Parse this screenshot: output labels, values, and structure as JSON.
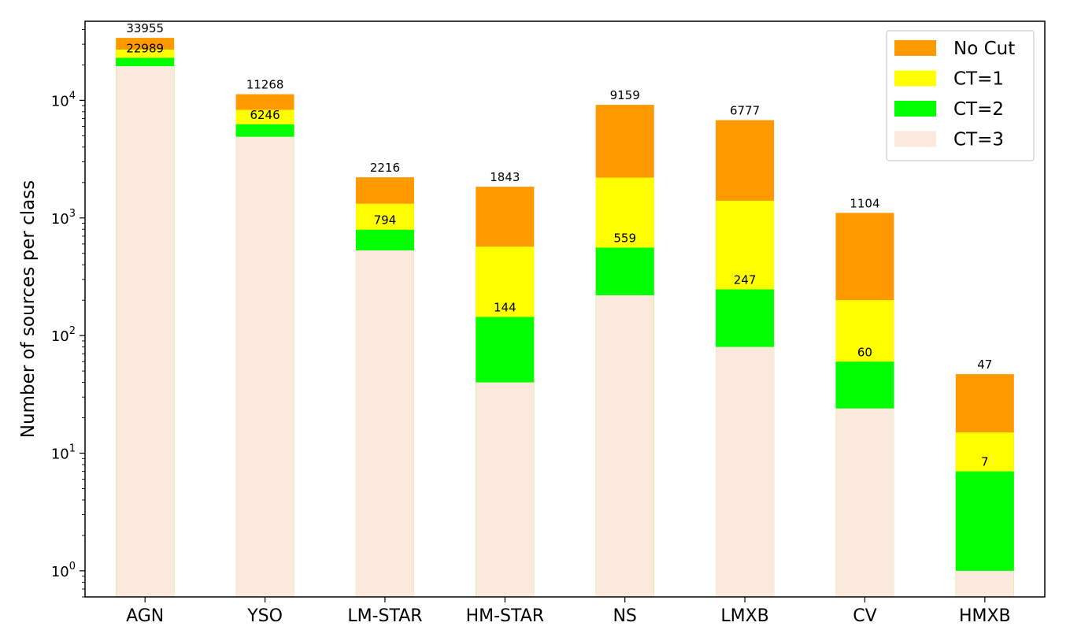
{
  "chart_data": {
    "type": "bar",
    "stacked": true,
    "categories": [
      "AGN",
      "YSO",
      "LM-STAR",
      "HM-STAR",
      "NS",
      "LMXB",
      "CV",
      "HMXB"
    ],
    "series": [
      {
        "name": "No Cut",
        "color": "#ff9900",
        "values": [
          33955,
          11268,
          2216,
          1843,
          9159,
          6777,
          1104,
          47
        ]
      },
      {
        "name": "CT=1",
        "color": "#ffff00",
        "values": [
          27000,
          8300,
          1320,
          570,
          2200,
          1400,
          200,
          15
        ]
      },
      {
        "name": "CT=2",
        "color": "#00ff00",
        "values": [
          22989,
          6246,
          794,
          144,
          559,
          247,
          60,
          7
        ]
      },
      {
        "name": "CT=3",
        "color": "#fbe9dd",
        "values": [
          19500,
          4900,
          530,
          40,
          220,
          80,
          24,
          1
        ]
      }
    ],
    "top_labels": [
      "33955",
      "11268",
      "2216",
      "1843",
      "9159",
      "6777",
      "1104",
      "47"
    ],
    "ct2_labels": [
      "22989",
      "6246",
      "794",
      "144",
      "559",
      "247",
      "60",
      "7"
    ],
    "ylabel": "Number of sources per class",
    "yscale": "log",
    "ylim": [
      0.6,
      47000
    ],
    "yticks": [
      {
        "value": 1,
        "base": "10",
        "exp": "0"
      },
      {
        "value": 10,
        "base": "10",
        "exp": "1"
      },
      {
        "value": 100,
        "base": "10",
        "exp": "2"
      },
      {
        "value": 1000,
        "base": "10",
        "exp": "3"
      },
      {
        "value": 10000,
        "base": "10",
        "exp": "4"
      }
    ],
    "legend_position": "top-right",
    "grid": false
  }
}
